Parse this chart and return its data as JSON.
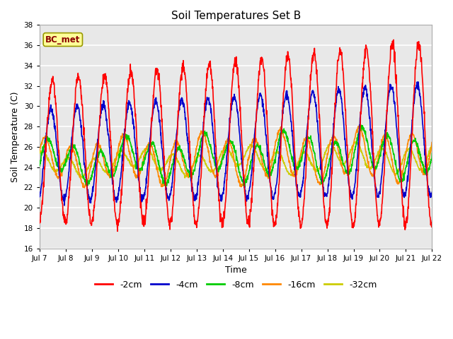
{
  "title": "Soil Temperatures Set B",
  "xlabel": "Time",
  "ylabel": "Soil Temperature (C)",
  "ylim": [
    16,
    38
  ],
  "yticks": [
    16,
    18,
    20,
    22,
    24,
    26,
    28,
    30,
    32,
    34,
    36,
    38
  ],
  "series_colors": {
    "-2cm": "#ff0000",
    "-4cm": "#0000cc",
    "-8cm": "#00cc00",
    "-16cm": "#ff8800",
    "-32cm": "#cccc00"
  },
  "annotation_text": "BC_met",
  "fig_facecolor": "#ffffff",
  "ax_facecolor": "#e8e8e8",
  "grid_color": "#ffffff",
  "xtick_labels": [
    "Jul 7",
    "Jul 8",
    "Jul 9",
    "Jul 10",
    "Jul 11",
    "Jul 12",
    "Jul 13",
    "Jul 14",
    "Jul 15",
    "Jul 16",
    "Jul 17",
    "Jul 18",
    "Jul 19",
    "Jul 20",
    "Jul 21",
    "Jul 22"
  ],
  "legend_entries": [
    "-2cm",
    "-4cm",
    "-8cm",
    "-16cm",
    "-32cm"
  ]
}
